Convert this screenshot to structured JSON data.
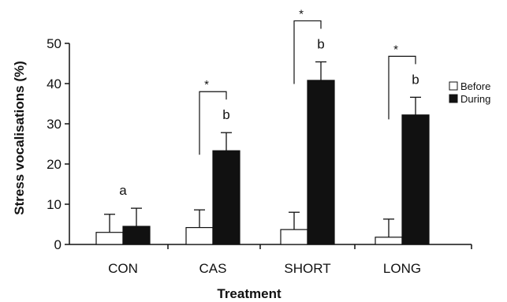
{
  "chart_data": {
    "type": "bar",
    "title": "",
    "xlabel": "Treatment",
    "ylabel": "Stress vocalisations (%)",
    "ylim": [
      0,
      50
    ],
    "yticks": [
      0,
      10,
      20,
      30,
      40,
      50
    ],
    "categories": [
      "CON",
      "CAS",
      "SHORT",
      "LONG"
    ],
    "series": [
      {
        "name": "Before",
        "color": "#ffffff",
        "values": [
          3.0,
          4.2,
          3.7,
          1.8
        ],
        "errors": [
          4.5,
          4.4,
          4.3,
          4.5
        ]
      },
      {
        "name": "During",
        "color": "#111111",
        "values": [
          4.5,
          23.3,
          40.8,
          32.2
        ],
        "errors": [
          4.5,
          4.5,
          4.6,
          4.4
        ]
      }
    ],
    "legend": {
      "placement": "right",
      "entries": [
        "Before",
        "During"
      ]
    },
    "significance_letters": [
      "a",
      "b",
      "b",
      "b"
    ],
    "significance_brackets": [
      {
        "category": "CAS",
        "label": "*"
      },
      {
        "category": "SHORT",
        "label": "*"
      },
      {
        "category": "LONG",
        "label": "*"
      }
    ],
    "grid": false
  }
}
